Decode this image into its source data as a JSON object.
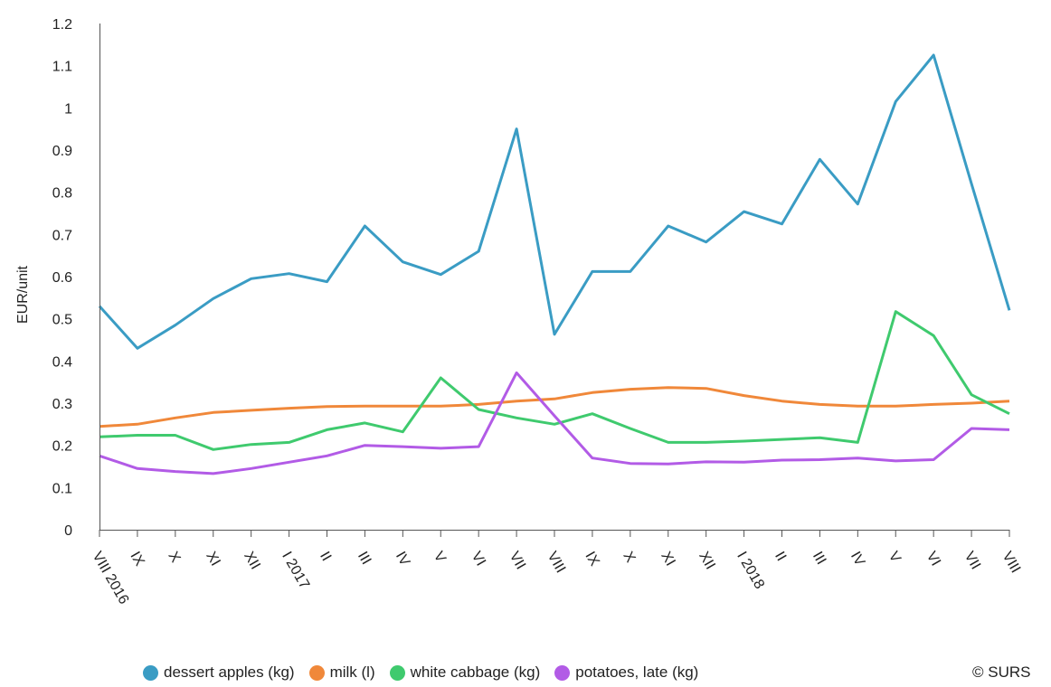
{
  "chart_data": {
    "type": "line",
    "ylabel": "EUR/unit",
    "ylim": [
      0,
      1.2
    ],
    "yticks": [
      "0",
      "0.1",
      "0.2",
      "0.3",
      "0.4",
      "0.5",
      "0.6",
      "0.7",
      "0.8",
      "0.9",
      "1",
      "1.1",
      "1.2"
    ],
    "categories": [
      "VIII 2016",
      "IX",
      "X",
      "XI",
      "XII",
      "I 2017",
      "II",
      "III",
      "IV",
      "V",
      "VI",
      "VII",
      "VIII",
      "IX",
      "X",
      "XI",
      "XII",
      "I 2018",
      "II",
      "III",
      "IV",
      "V",
      "VI",
      "VII",
      "VIII"
    ],
    "series": [
      {
        "name": "dessert apples (kg)",
        "color": "#3a9cc4",
        "values": [
          0.53,
          0.43,
          0.485,
          0.548,
          0.595,
          0.607,
          0.588,
          0.72,
          0.635,
          0.605,
          0.66,
          0.95,
          0.463,
          0.612,
          0.612,
          0.72,
          0.682,
          0.754,
          0.725,
          0.878,
          0.772,
          1.015,
          1.125,
          0.82,
          0.52
        ]
      },
      {
        "name": "milk (l)",
        "color": "#f0883a",
        "values": [
          0.245,
          0.25,
          0.265,
          0.278,
          0.283,
          0.288,
          0.292,
          0.293,
          0.293,
          0.293,
          0.297,
          0.305,
          0.31,
          0.325,
          0.333,
          0.337,
          0.335,
          0.318,
          0.305,
          0.297,
          0.293,
          0.293,
          0.297,
          0.3,
          0.305
        ]
      },
      {
        "name": "white cabbage (kg)",
        "color": "#3fca6e",
        "values": [
          0.22,
          0.224,
          0.224,
          0.19,
          0.202,
          0.207,
          0.237,
          0.253,
          0.232,
          0.36,
          0.285,
          0.265,
          0.25,
          0.275,
          0.24,
          0.207,
          0.207,
          0.21,
          0.214,
          0.218,
          0.207,
          0.517,
          0.46,
          0.32,
          0.275
        ]
      },
      {
        "name": "potatoes, late (kg)",
        "color": "#b25be6",
        "values": [
          0.175,
          0.145,
          0.138,
          0.133,
          0.145,
          0.16,
          0.175,
          0.2,
          0.197,
          0.193,
          0.197,
          0.372,
          0.27,
          0.17,
          0.157,
          0.156,
          0.161,
          0.16,
          0.165,
          0.166,
          0.17,
          0.163,
          0.166,
          0.24,
          0.237
        ]
      }
    ],
    "legend_position": "bottom",
    "grid": false,
    "credit": "© SURS"
  }
}
